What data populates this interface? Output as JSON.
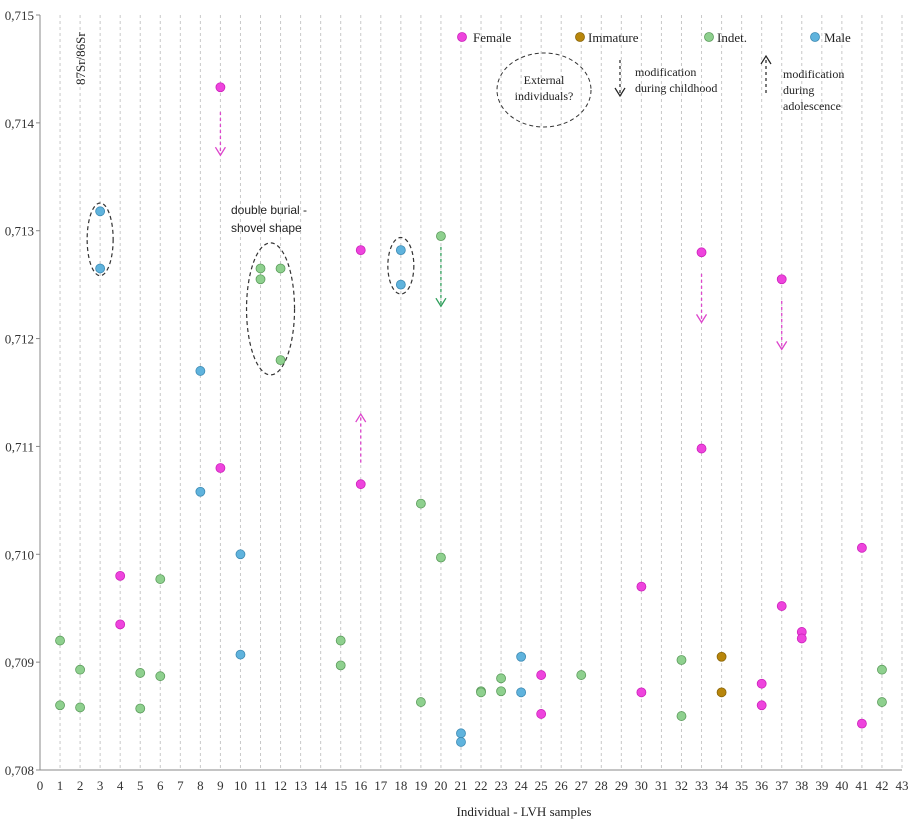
{
  "chart_data": {
    "type": "scatter",
    "title": "",
    "xlabel": "Individual  - LVH samples",
    "ylabel": "87Sr/86Sr",
    "xlim": [
      0,
      43
    ],
    "ylim": [
      0.708,
      0.715
    ],
    "y_ticks": [
      "0,708",
      "0,709",
      "0,710",
      "0,711",
      "0,712",
      "0,713",
      "0,714",
      "0,715"
    ],
    "x_ticks": [
      "0",
      "1",
      "2",
      "3",
      "4",
      "5",
      "6",
      "7",
      "8",
      "9",
      "10",
      "11",
      "12",
      "13",
      "14",
      "15",
      "16",
      "17",
      "18",
      "19",
      "20",
      "21",
      "22",
      "23",
      "24",
      "25",
      "26",
      "27",
      "28",
      "29",
      "30",
      "31",
      "32",
      "33",
      "34",
      "35",
      "36",
      "37",
      "38",
      "39",
      "40",
      "41",
      "42",
      "43"
    ],
    "grid": "vertical dashed",
    "legend_position": "top-right",
    "series": [
      {
        "name": "Female",
        "color": "#ee44dd",
        "points": [
          [
            4,
            0.7098
          ],
          [
            4,
            0.70935
          ],
          [
            9,
            0.71433
          ],
          [
            9,
            0.7108
          ],
          [
            16,
            0.71282
          ],
          [
            16,
            0.71065
          ],
          [
            25,
            0.70888
          ],
          [
            25,
            0.70852
          ],
          [
            30,
            0.7097
          ],
          [
            30,
            0.70872
          ],
          [
            33,
            0.7128
          ],
          [
            33,
            0.71098
          ],
          [
            36,
            0.7088
          ],
          [
            36,
            0.7086
          ],
          [
            37,
            0.71255
          ],
          [
            37,
            0.70952
          ],
          [
            38,
            0.70928
          ],
          [
            38,
            0.70922
          ],
          [
            41,
            0.71006
          ],
          [
            41,
            0.70843
          ]
        ]
      },
      {
        "name": "Immature",
        "color": "#b8860b",
        "points": [
          [
            34,
            0.70905
          ],
          [
            34,
            0.70872
          ]
        ]
      },
      {
        "name": "Indet.",
        "color": "#8ed08e",
        "points": [
          [
            1,
            0.7092
          ],
          [
            1,
            0.7086
          ],
          [
            2,
            0.70893
          ],
          [
            2,
            0.70858
          ],
          [
            5,
            0.7089
          ],
          [
            5,
            0.70857
          ],
          [
            6,
            0.70977
          ],
          [
            6,
            0.70887
          ],
          [
            11,
            0.71265
          ],
          [
            11,
            0.71255
          ],
          [
            12,
            0.71265
          ],
          [
            12,
            0.7118
          ],
          [
            15,
            0.7092
          ],
          [
            15,
            0.70897
          ],
          [
            19,
            0.71047
          ],
          [
            19,
            0.70863
          ],
          [
            20,
            0.71295
          ],
          [
            20,
            0.70997
          ],
          [
            22,
            0.70873
          ],
          [
            22,
            0.70872
          ],
          [
            23,
            0.70885
          ],
          [
            23,
            0.70873
          ],
          [
            27,
            0.70888
          ],
          [
            32,
            0.70902
          ],
          [
            32,
            0.7085
          ],
          [
            42,
            0.70893
          ],
          [
            42,
            0.70863
          ]
        ]
      },
      {
        "name": "Male",
        "color": "#5fb3dd",
        "points": [
          [
            3,
            0.71318
          ],
          [
            3,
            0.71265
          ],
          [
            8,
            0.7117
          ],
          [
            8,
            0.71058
          ],
          [
            10,
            0.71
          ],
          [
            10,
            0.70907
          ],
          [
            18,
            0.71282
          ],
          [
            18,
            0.7125
          ],
          [
            21,
            0.70834
          ],
          [
            21,
            0.70826
          ],
          [
            24,
            0.70905
          ],
          [
            24,
            0.70872
          ]
        ]
      }
    ],
    "arrows": [
      {
        "x": 9,
        "from": 0.7141,
        "to": 0.7137,
        "direction": "down",
        "color": "#dd44cc"
      },
      {
        "x": 16,
        "from": 0.71085,
        "to": 0.7113,
        "direction": "up",
        "color": "#dd44cc"
      },
      {
        "x": 20,
        "from": 0.71285,
        "to": 0.7123,
        "direction": "down",
        "color": "#2e9e5a"
      },
      {
        "x": 33,
        "from": 0.7126,
        "to": 0.71215,
        "direction": "down",
        "color": "#dd44cc"
      },
      {
        "x": 37,
        "from": 0.71235,
        "to": 0.7119,
        "direction": "down",
        "color": "#dd44cc"
      }
    ],
    "groupings": [
      {
        "x": 3,
        "y_top": 0.71322,
        "y_bottom": 0.71262
      },
      {
        "x": 11.5,
        "y_top": 0.71285,
        "y_bottom": 0.7117
      },
      {
        "x": 18,
        "y_top": 0.7129,
        "y_bottom": 0.71245
      }
    ],
    "annotations": {
      "double_burial": "double burial -",
      "shovel_shape": "shovel shape",
      "external_line1": "External",
      "external_line2": "individuals?",
      "childhood_line1": "modification",
      "childhood_line2": "during childhood",
      "adolescence_line1": "modification",
      "adolescence_line2": "during",
      "adolescence_line3": "adolescence"
    }
  }
}
